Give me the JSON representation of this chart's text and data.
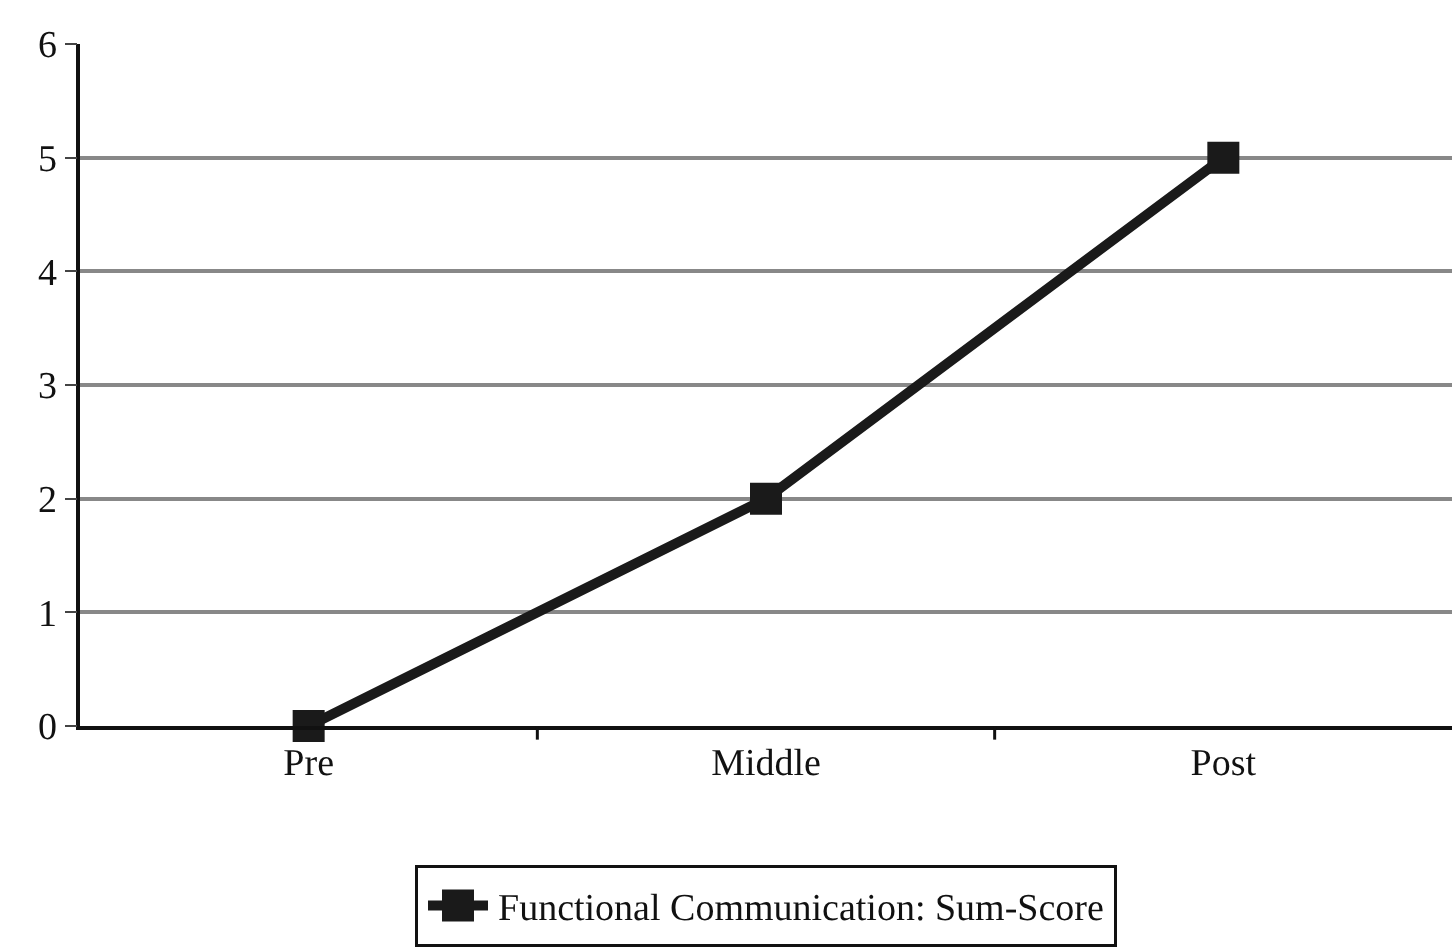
{
  "chart_data": {
    "type": "line",
    "categories": [
      "Pre",
      "Middle",
      "Post"
    ],
    "series": [
      {
        "name": "Functional Communication: Sum-Score",
        "color": "#1a1a1a",
        "values": [
          0,
          2,
          5
        ]
      }
    ],
    "ylim": [
      0,
      6
    ],
    "yticks": [
      0,
      1,
      2,
      3,
      4,
      5,
      6
    ],
    "grid": "y",
    "legend": "bottom",
    "marker": "square",
    "line_style": "solid"
  }
}
